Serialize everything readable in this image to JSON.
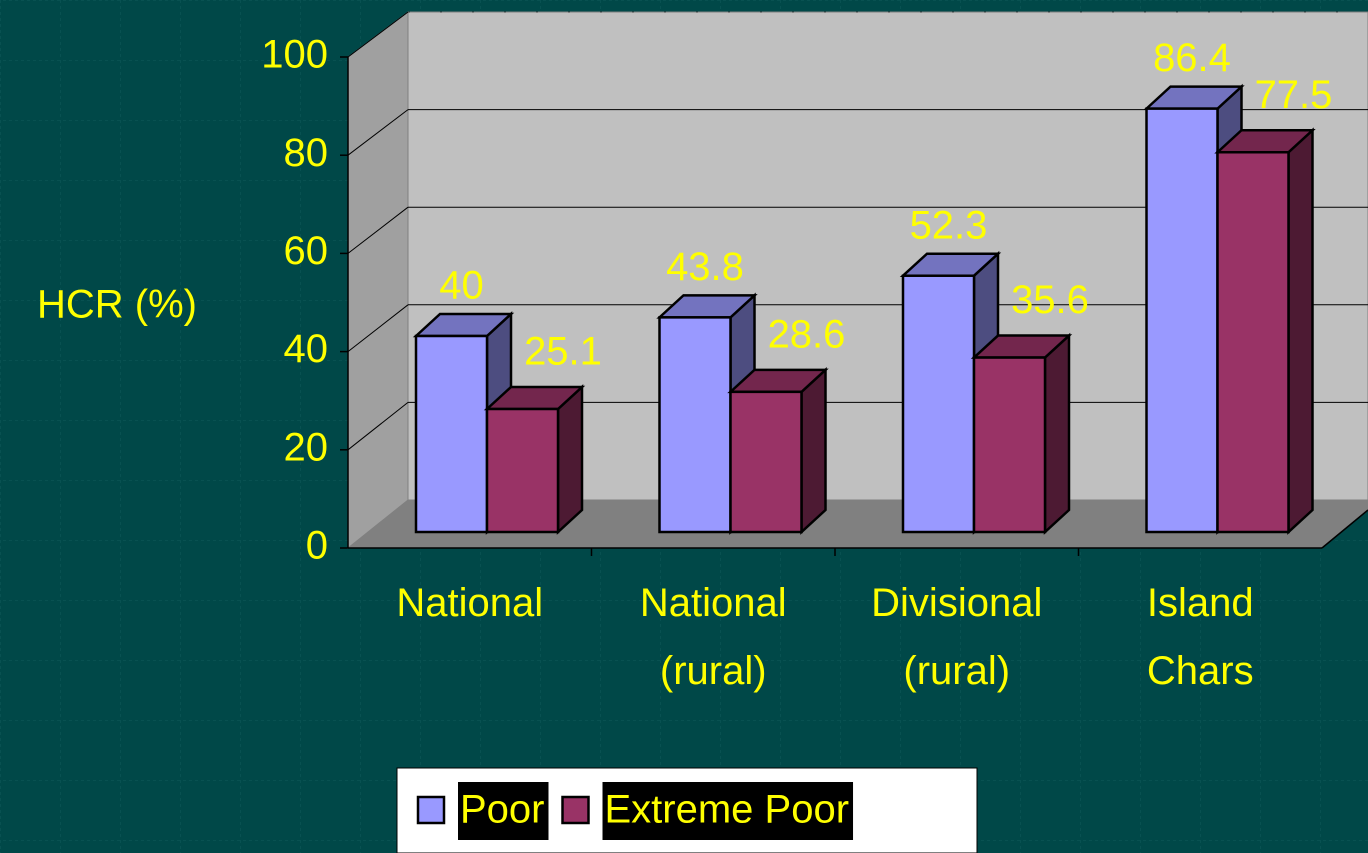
{
  "chart_data": {
    "type": "bar3d",
    "ylabel": "HCR (%)",
    "categories": [
      "National",
      "National (rural)",
      "Divisional (rural)",
      "Island Chars"
    ],
    "series": [
      {
        "name": "Poor",
        "color": "#9999ff",
        "values": [
          40,
          43.8,
          52.3,
          86.4
        ]
      },
      {
        "name": "Extreme Poor",
        "color": "#993366",
        "values": [
          25.1,
          28.6,
          35.6,
          77.5
        ]
      }
    ],
    "ylim": [
      0,
      100
    ],
    "yticks": [
      0,
      20,
      40,
      60,
      80,
      100
    ],
    "grid": true,
    "legend": "bottom"
  }
}
